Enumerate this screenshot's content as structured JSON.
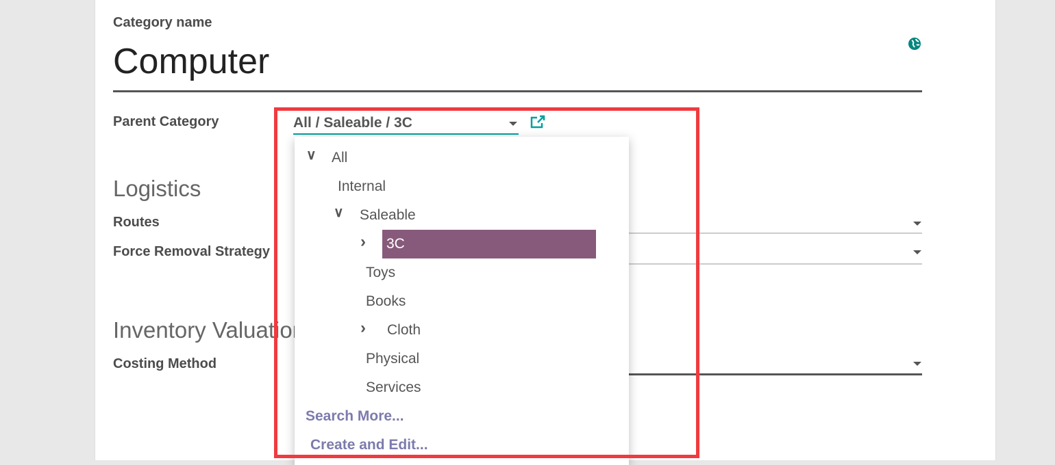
{
  "form": {
    "category_name_label": "Category name",
    "category_name_value": "Computer",
    "parent_category_label": "Parent Category",
    "parent_category_value": "All / Saleable / 3C",
    "logistics_heading": "Logistics",
    "routes_label": "Routes",
    "force_removal_label": "Force Removal Strategy",
    "inventory_valuation_heading": "Inventory Valuation",
    "costing_method_label": "Costing Method"
  },
  "dropdown": {
    "items": [
      {
        "label": "All",
        "expanded": true
      },
      {
        "label": "Internal"
      },
      {
        "label": "Saleable",
        "expanded": true
      },
      {
        "label": "3C",
        "collapsed": true,
        "selected": true
      },
      {
        "label": "Toys"
      },
      {
        "label": "Books"
      },
      {
        "label": "Cloth",
        "collapsed": true
      },
      {
        "label": "Physical"
      },
      {
        "label": "Services"
      }
    ],
    "search_more": "Search More...",
    "create_and_edit": "Create and Edit..."
  },
  "colors": {
    "accent": "#00a09d",
    "selected": "#875a7b",
    "highlight_box": "#f03a3f",
    "link": "#7c7bad"
  },
  "icons": {
    "website": "globe-icon",
    "external": "external-link-icon"
  }
}
